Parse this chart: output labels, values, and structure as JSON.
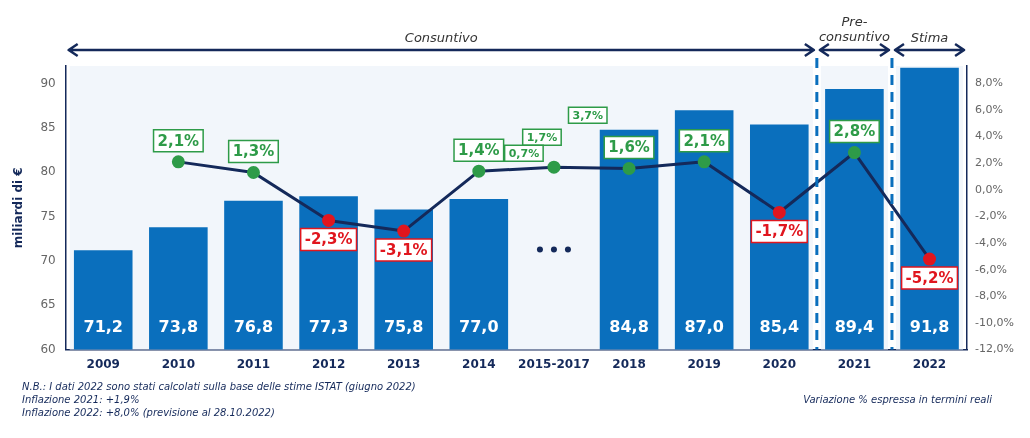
{
  "chart_data": {
    "type": "bar",
    "ylabel": "miliardi di €",
    "categories": [
      "2009",
      "2010",
      "2011",
      "2012",
      "2013",
      "2014",
      "2015-2017",
      "2018",
      "2019",
      "2020",
      "2021",
      "2022"
    ],
    "series": [
      {
        "color": "#0a6fbd",
        "values": [
          71.2,
          73.8,
          76.8,
          77.3,
          75.8,
          77.0,
          null,
          84.8,
          87.0,
          85.4,
          89.4,
          91.8
        ],
        "value_labels": [
          "71,2",
          "73,8",
          "76,8",
          "77,3",
          "75,8",
          "77,0",
          null,
          "84,8",
          "87,0",
          "85,4",
          "89,4",
          "91,8"
        ]
      },
      {
        "type": "line",
        "axis": "y2",
        "color": "#14295a",
        "colors": [
          "#2e9b48",
          "#2e9b48",
          "#2e9b48",
          "#e0161e",
          "#e0161e",
          "#2e9b48",
          "#2e9b48",
          "#2e9b48",
          "#2e9b48",
          "#e0161e",
          "#2e9b48",
          "#e0161e"
        ],
        "values": [
          null,
          2.1,
          1.3,
          -2.3,
          -3.1,
          1.4,
          1.7,
          1.6,
          2.1,
          -1.7,
          2.8,
          -5.2
        ],
        "value_labels": [
          null,
          "2,1%",
          "1,3%",
          "-2,3%",
          "-3,1%",
          "1,4%",
          "1,7%",
          "1,6%",
          "2,1%",
          "-1,7%",
          "2,8%",
          "-5,2%"
        ]
      }
    ],
    "ylim": [
      60,
      92
    ],
    "yticks": [
      60,
      65,
      70,
      75,
      80,
      85,
      90
    ],
    "y2lim": [
      -12,
      9.3
    ],
    "y2ticks": [
      {
        "value": -12,
        "label": "-12,0%"
      },
      {
        "value": -10,
        "label": "-10,0%"
      },
      {
        "value": -8,
        "label": "-8,0%"
      },
      {
        "value": -6,
        "label": "-6,0%"
      },
      {
        "value": -4,
        "label": "-4,0%"
      },
      {
        "value": -2,
        "label": "-2,0%"
      },
      {
        "value": 0,
        "label": "0,0%"
      },
      {
        "value": 2,
        "label": "2,0%"
      },
      {
        "value": 4,
        "label": "4,0%"
      },
      {
        "value": 6,
        "label": "6,0%"
      },
      {
        "value": 8,
        "label": "8,0%"
      }
    ],
    "grid": false,
    "marker": "circle",
    "line_style": "solid",
    "bands": [
      {
        "axis": "x",
        "from": "2009",
        "to": "2020",
        "label": "Consuntivo",
        "color": "#f2f6fb"
      },
      {
        "axis": "x",
        "from": "2021",
        "to": "2021",
        "label": "Pre-consuntivo",
        "color": "#f2f6fb"
      },
      {
        "axis": "x",
        "from": "2022",
        "to": "2022",
        "label": "Stima",
        "color": "#f2f6fb"
      }
    ],
    "annotations": [
      "0,7%",
      "3,7%",
      "N.B.: I dati 2022 sono stati calcolati sulla base delle stime ISTAT (giugno 2022)",
      "Inflazione 2021: +1,9%",
      "Inflazione 2022: +8,0% (previsione al 28.10.2022)",
      "Variazione % espressa in termini reali"
    ]
  }
}
